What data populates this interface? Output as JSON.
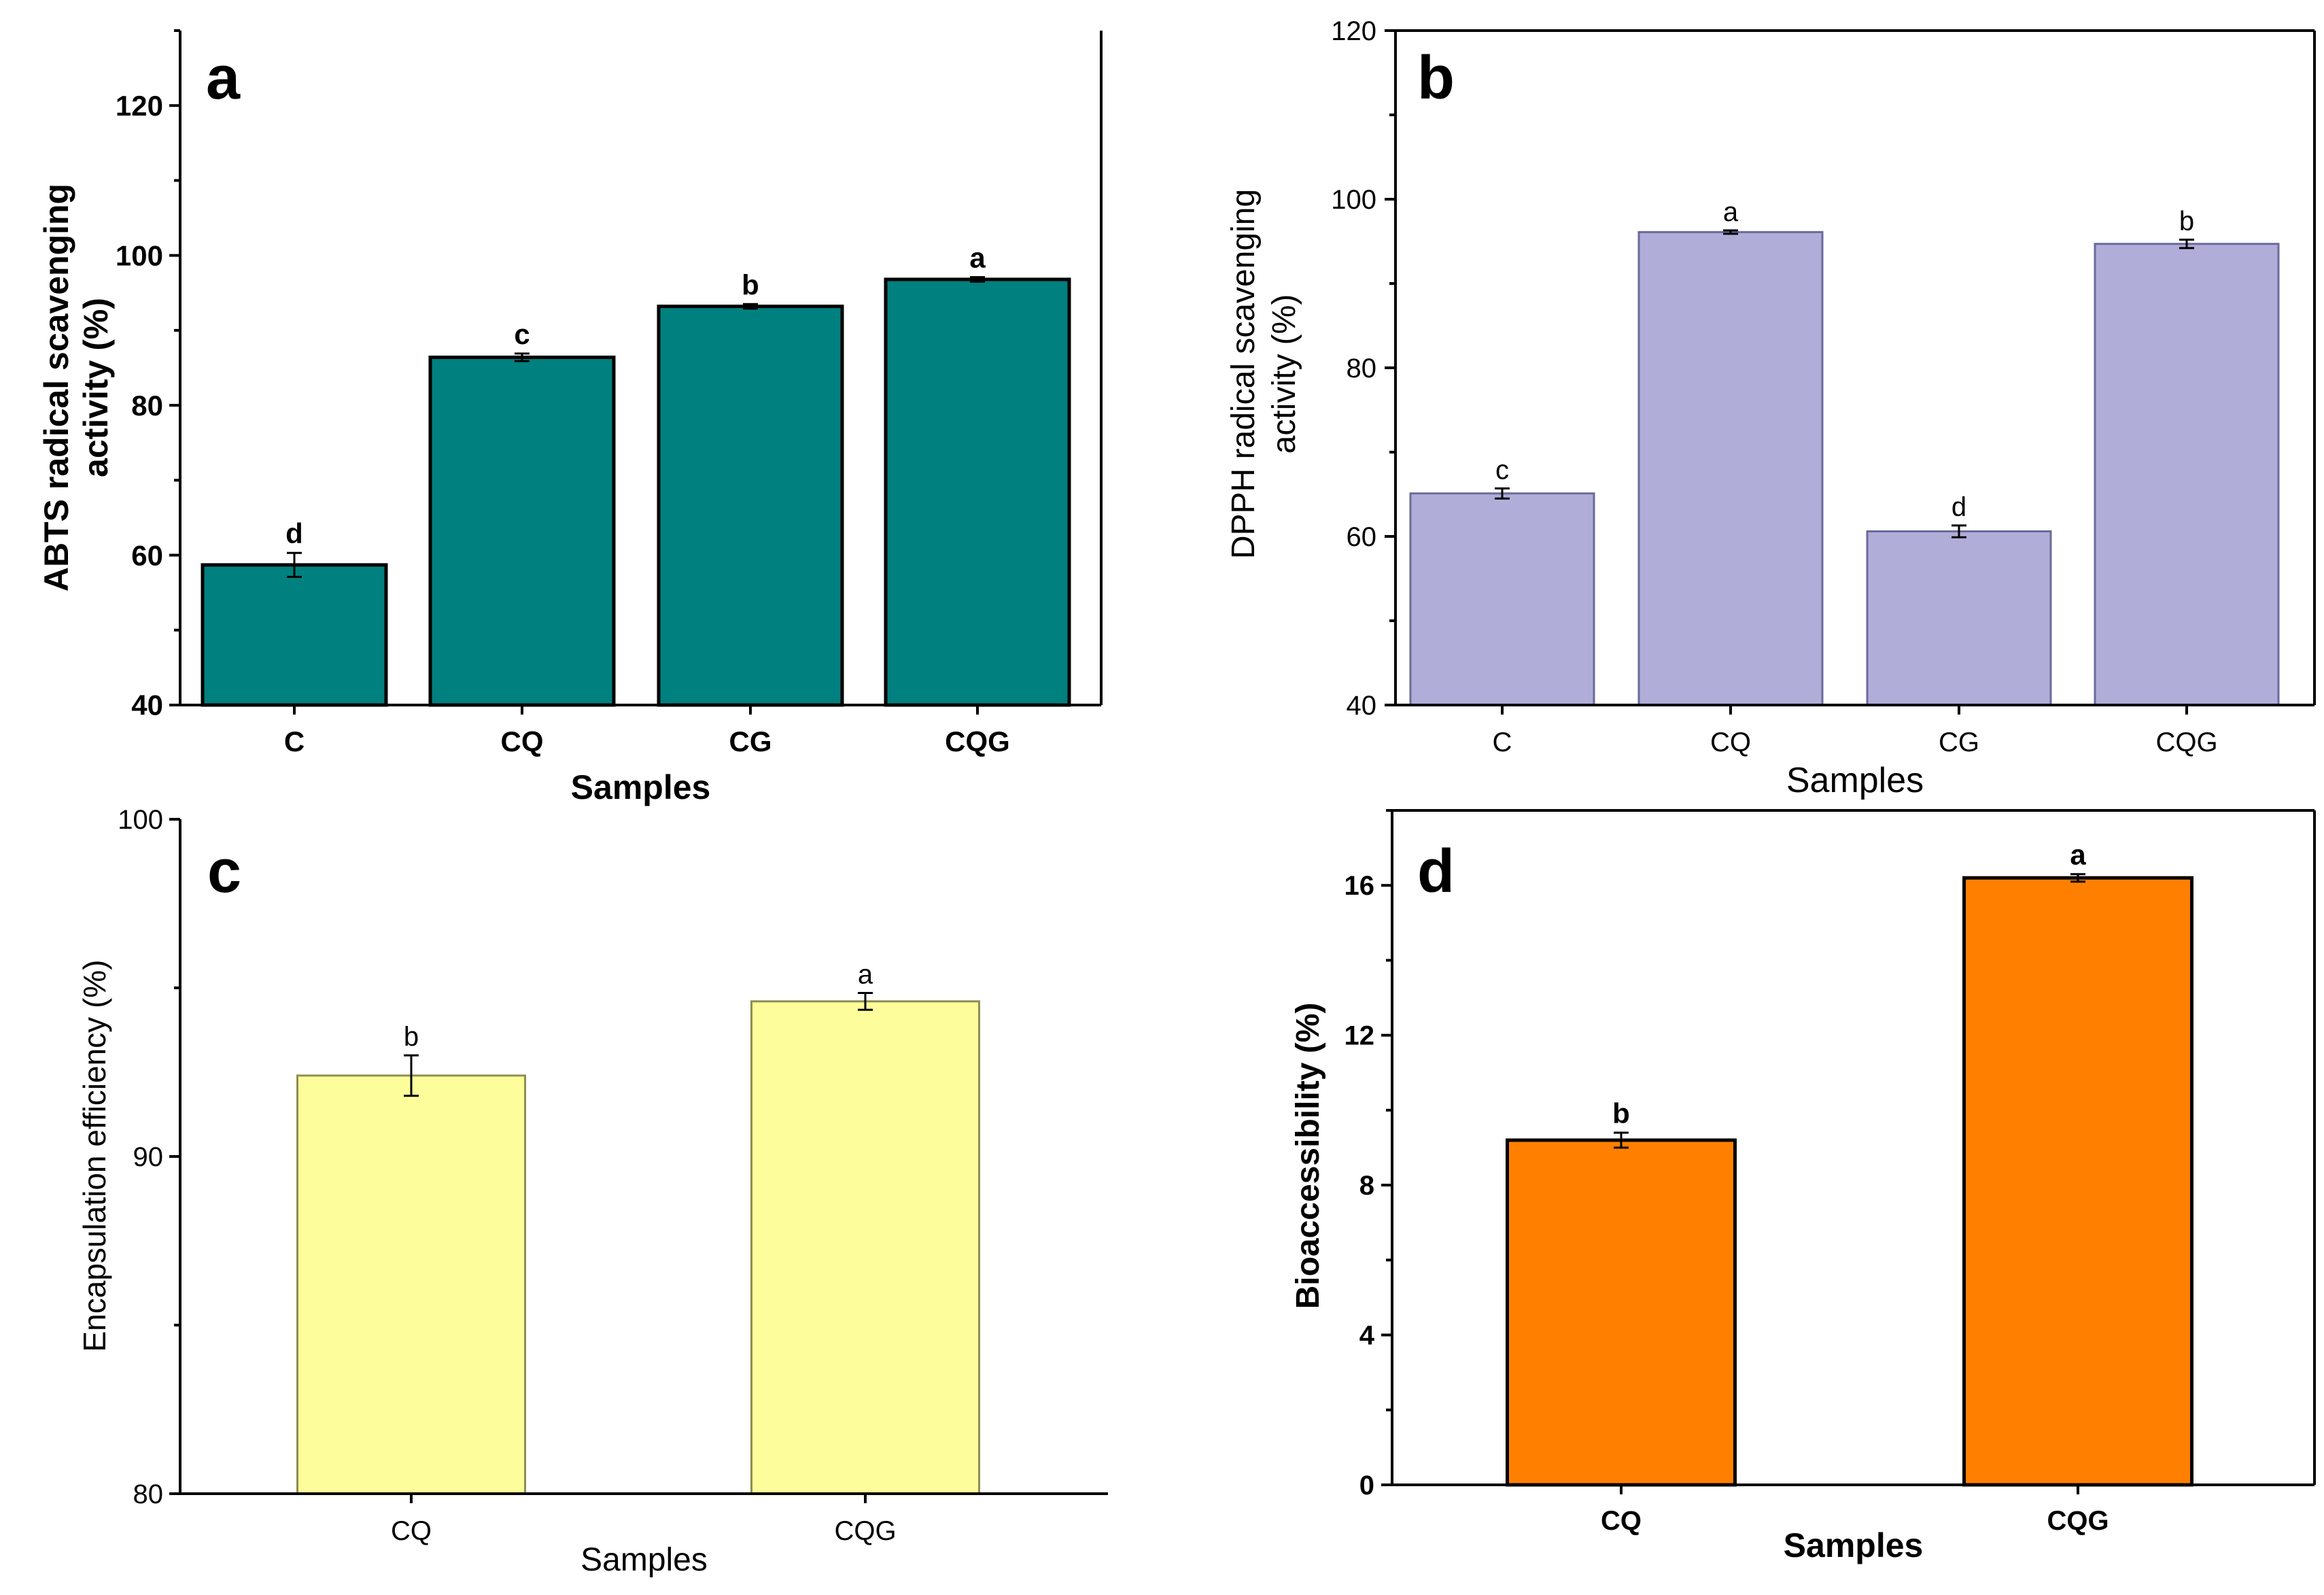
{
  "chart_data": [
    {
      "panel": "a",
      "type": "bar",
      "title": "",
      "xlabel": "Samples",
      "ylabel": [
        "ABTS radical scavenging",
        "activity (%)"
      ],
      "categories": [
        "C",
        "CQ",
        "CG",
        "CQG"
      ],
      "values": [
        58.7,
        86.4,
        93.2,
        96.8
      ],
      "errors": [
        1.6,
        0.5,
        0.3,
        0.3
      ],
      "letters": [
        "d",
        "c",
        "b",
        "a"
      ],
      "ylim": [
        40,
        130
      ],
      "yticks": [
        40,
        60,
        80,
        100,
        120
      ],
      "ytick_labels": [
        "40",
        "60",
        "80",
        "100",
        "120"
      ],
      "bar_color": "#00807f",
      "bold": true
    },
    {
      "panel": "b",
      "type": "bar",
      "title": "",
      "xlabel": "Samples",
      "ylabel": [
        "DPPH radical scavenging",
        "activity (%)"
      ],
      "categories": [
        "C",
        "CQ",
        "CG",
        "CQG"
      ],
      "values": [
        65.1,
        96.1,
        60.6,
        94.7
      ],
      "errors": [
        0.6,
        0.2,
        0.7,
        0.5
      ],
      "letters": [
        "c",
        "a",
        "d",
        "b"
      ],
      "ylim": [
        40,
        120
      ],
      "yticks": [
        40,
        60,
        80,
        100,
        120
      ],
      "ytick_labels": [
        "40",
        "60",
        "80",
        "100",
        "120"
      ],
      "bar_color": "#b0aed8",
      "bold": false
    },
    {
      "panel": "c",
      "type": "bar",
      "title": "",
      "xlabel": "Samples",
      "ylabel": [
        "Encapsulation efficiency (%)"
      ],
      "categories": [
        "CQ",
        "CQG"
      ],
      "values": [
        92.4,
        94.6
      ],
      "errors": [
        0.6,
        0.25
      ],
      "letters": [
        "b",
        "a"
      ],
      "ylim": [
        80,
        100
      ],
      "yticks": [
        80,
        90,
        100
      ],
      "ytick_labels": [
        "80",
        "90",
        "100"
      ],
      "bar_color": "#fdfd9c",
      "bold": false
    },
    {
      "panel": "d",
      "type": "bar",
      "title": "",
      "xlabel": "Samples",
      "ylabel": [
        "Bioaccessibility (%)"
      ],
      "categories": [
        "CQ",
        "CQG"
      ],
      "values": [
        9.2,
        16.2
      ],
      "errors": [
        0.2,
        0.1
      ],
      "letters": [
        "b",
        "a"
      ],
      "ylim": [
        0,
        18
      ],
      "yticks": [
        0,
        4,
        8,
        12,
        16
      ],
      "ytick_labels": [
        "0",
        "4",
        "8",
        "12",
        "16"
      ],
      "bar_color": "#ff8000",
      "bold": true
    }
  ]
}
